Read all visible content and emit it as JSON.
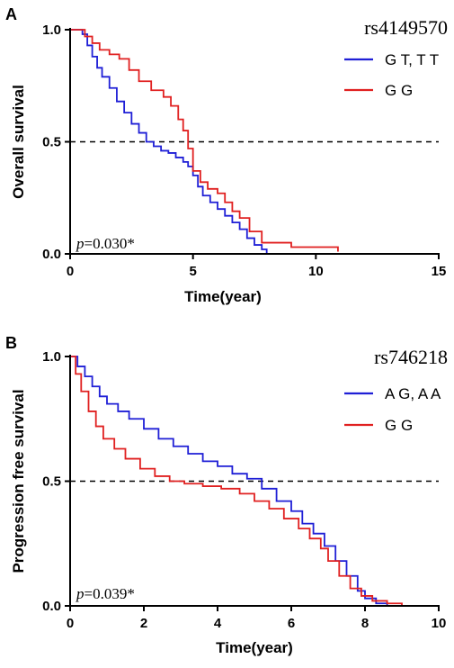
{
  "chart_data": [
    {
      "panel": "A",
      "type": "line",
      "step": true,
      "snp": "rs4149570",
      "p_italic": "p",
      "p_rest": "=0.030*",
      "xlabel": "Time(year)",
      "ylabel": "Overall survival",
      "xlim": [
        0,
        15
      ],
      "ylim": [
        0,
        1.0
      ],
      "xticks": [
        0,
        5,
        10,
        15
      ],
      "xtick_labels": [
        "0",
        "5",
        "10",
        "15"
      ],
      "yticks": [
        0,
        0.5,
        1.0
      ],
      "ytick_labels": [
        "0.0",
        "0.5",
        "1.0"
      ],
      "reference_line_y": 0.5,
      "legend_position": "top-right",
      "series": [
        {
          "name": "G T, T T",
          "color": "#1f1fd6",
          "x": [
            0,
            0.5,
            0.7,
            0.9,
            1.1,
            1.3,
            1.6,
            1.9,
            2.2,
            2.5,
            2.8,
            3.1,
            3.4,
            3.7,
            4.0,
            4.3,
            4.6,
            4.8,
            5.0,
            5.2,
            5.4,
            5.7,
            6.0,
            6.3,
            6.6,
            6.9,
            7.2,
            7.5,
            7.8,
            8.0
          ],
          "y": [
            1.0,
            0.98,
            0.93,
            0.88,
            0.83,
            0.79,
            0.74,
            0.68,
            0.63,
            0.58,
            0.54,
            0.5,
            0.48,
            0.46,
            0.45,
            0.43,
            0.41,
            0.39,
            0.35,
            0.3,
            0.26,
            0.23,
            0.2,
            0.17,
            0.14,
            0.11,
            0.07,
            0.04,
            0.02,
            0.0
          ]
        },
        {
          "name": "G G",
          "color": "#e02020",
          "x": [
            0,
            0.6,
            0.9,
            1.2,
            1.6,
            2.0,
            2.4,
            2.8,
            3.3,
            3.8,
            4.1,
            4.4,
            4.6,
            4.8,
            5.0,
            5.3,
            5.6,
            6.0,
            6.3,
            6.6,
            6.9,
            7.3,
            7.8,
            9.0,
            10.9
          ],
          "y": [
            1.0,
            0.97,
            0.94,
            0.91,
            0.89,
            0.87,
            0.82,
            0.77,
            0.73,
            0.7,
            0.66,
            0.6,
            0.55,
            0.47,
            0.37,
            0.32,
            0.29,
            0.27,
            0.23,
            0.19,
            0.16,
            0.1,
            0.05,
            0.03,
            0.01
          ]
        }
      ]
    },
    {
      "panel": "B",
      "type": "line",
      "step": true,
      "snp": "rs746218",
      "p_italic": "p",
      "p_rest": "=0.039*",
      "xlabel": "Time(year)",
      "ylabel": "Progression free survival",
      "xlim": [
        0,
        10
      ],
      "ylim": [
        0,
        1.0
      ],
      "xticks": [
        0,
        2,
        4,
        6,
        8,
        10
      ],
      "xtick_labels": [
        "0",
        "2",
        "4",
        "6",
        "8",
        "10"
      ],
      "yticks": [
        0,
        0.5,
        1.0
      ],
      "ytick_labels": [
        "0.0",
        "0.5",
        "1.0"
      ],
      "reference_line_y": 0.5,
      "legend_position": "top-right",
      "series": [
        {
          "name": "A G, A A",
          "color": "#1f1fd6",
          "x": [
            0,
            0.2,
            0.4,
            0.6,
            0.8,
            1.0,
            1.3,
            1.6,
            2.0,
            2.4,
            2.8,
            3.2,
            3.6,
            4.0,
            4.4,
            4.8,
            5.2,
            5.6,
            6.0,
            6.3,
            6.6,
            6.9,
            7.2,
            7.5,
            7.8,
            8.0,
            8.3,
            8.6
          ],
          "y": [
            1.0,
            0.96,
            0.92,
            0.88,
            0.84,
            0.81,
            0.78,
            0.75,
            0.71,
            0.67,
            0.64,
            0.61,
            0.58,
            0.56,
            0.53,
            0.51,
            0.47,
            0.42,
            0.38,
            0.33,
            0.29,
            0.24,
            0.18,
            0.12,
            0.06,
            0.03,
            0.01,
            0.0
          ]
        },
        {
          "name": "G G",
          "color": "#e02020",
          "x": [
            0,
            0.15,
            0.3,
            0.5,
            0.7,
            0.9,
            1.2,
            1.5,
            1.9,
            2.3,
            2.7,
            3.1,
            3.6,
            4.1,
            4.6,
            5.0,
            5.4,
            5.8,
            6.2,
            6.5,
            6.8,
            7.0,
            7.3,
            7.6,
            7.9,
            8.2,
            8.6,
            9.0
          ],
          "y": [
            1.0,
            0.93,
            0.86,
            0.78,
            0.72,
            0.67,
            0.63,
            0.59,
            0.55,
            0.52,
            0.5,
            0.49,
            0.48,
            0.47,
            0.45,
            0.42,
            0.39,
            0.35,
            0.31,
            0.27,
            0.23,
            0.18,
            0.12,
            0.07,
            0.04,
            0.02,
            0.01,
            0.0
          ]
        }
      ]
    }
  ],
  "panel_letters": [
    "A",
    "B"
  ]
}
